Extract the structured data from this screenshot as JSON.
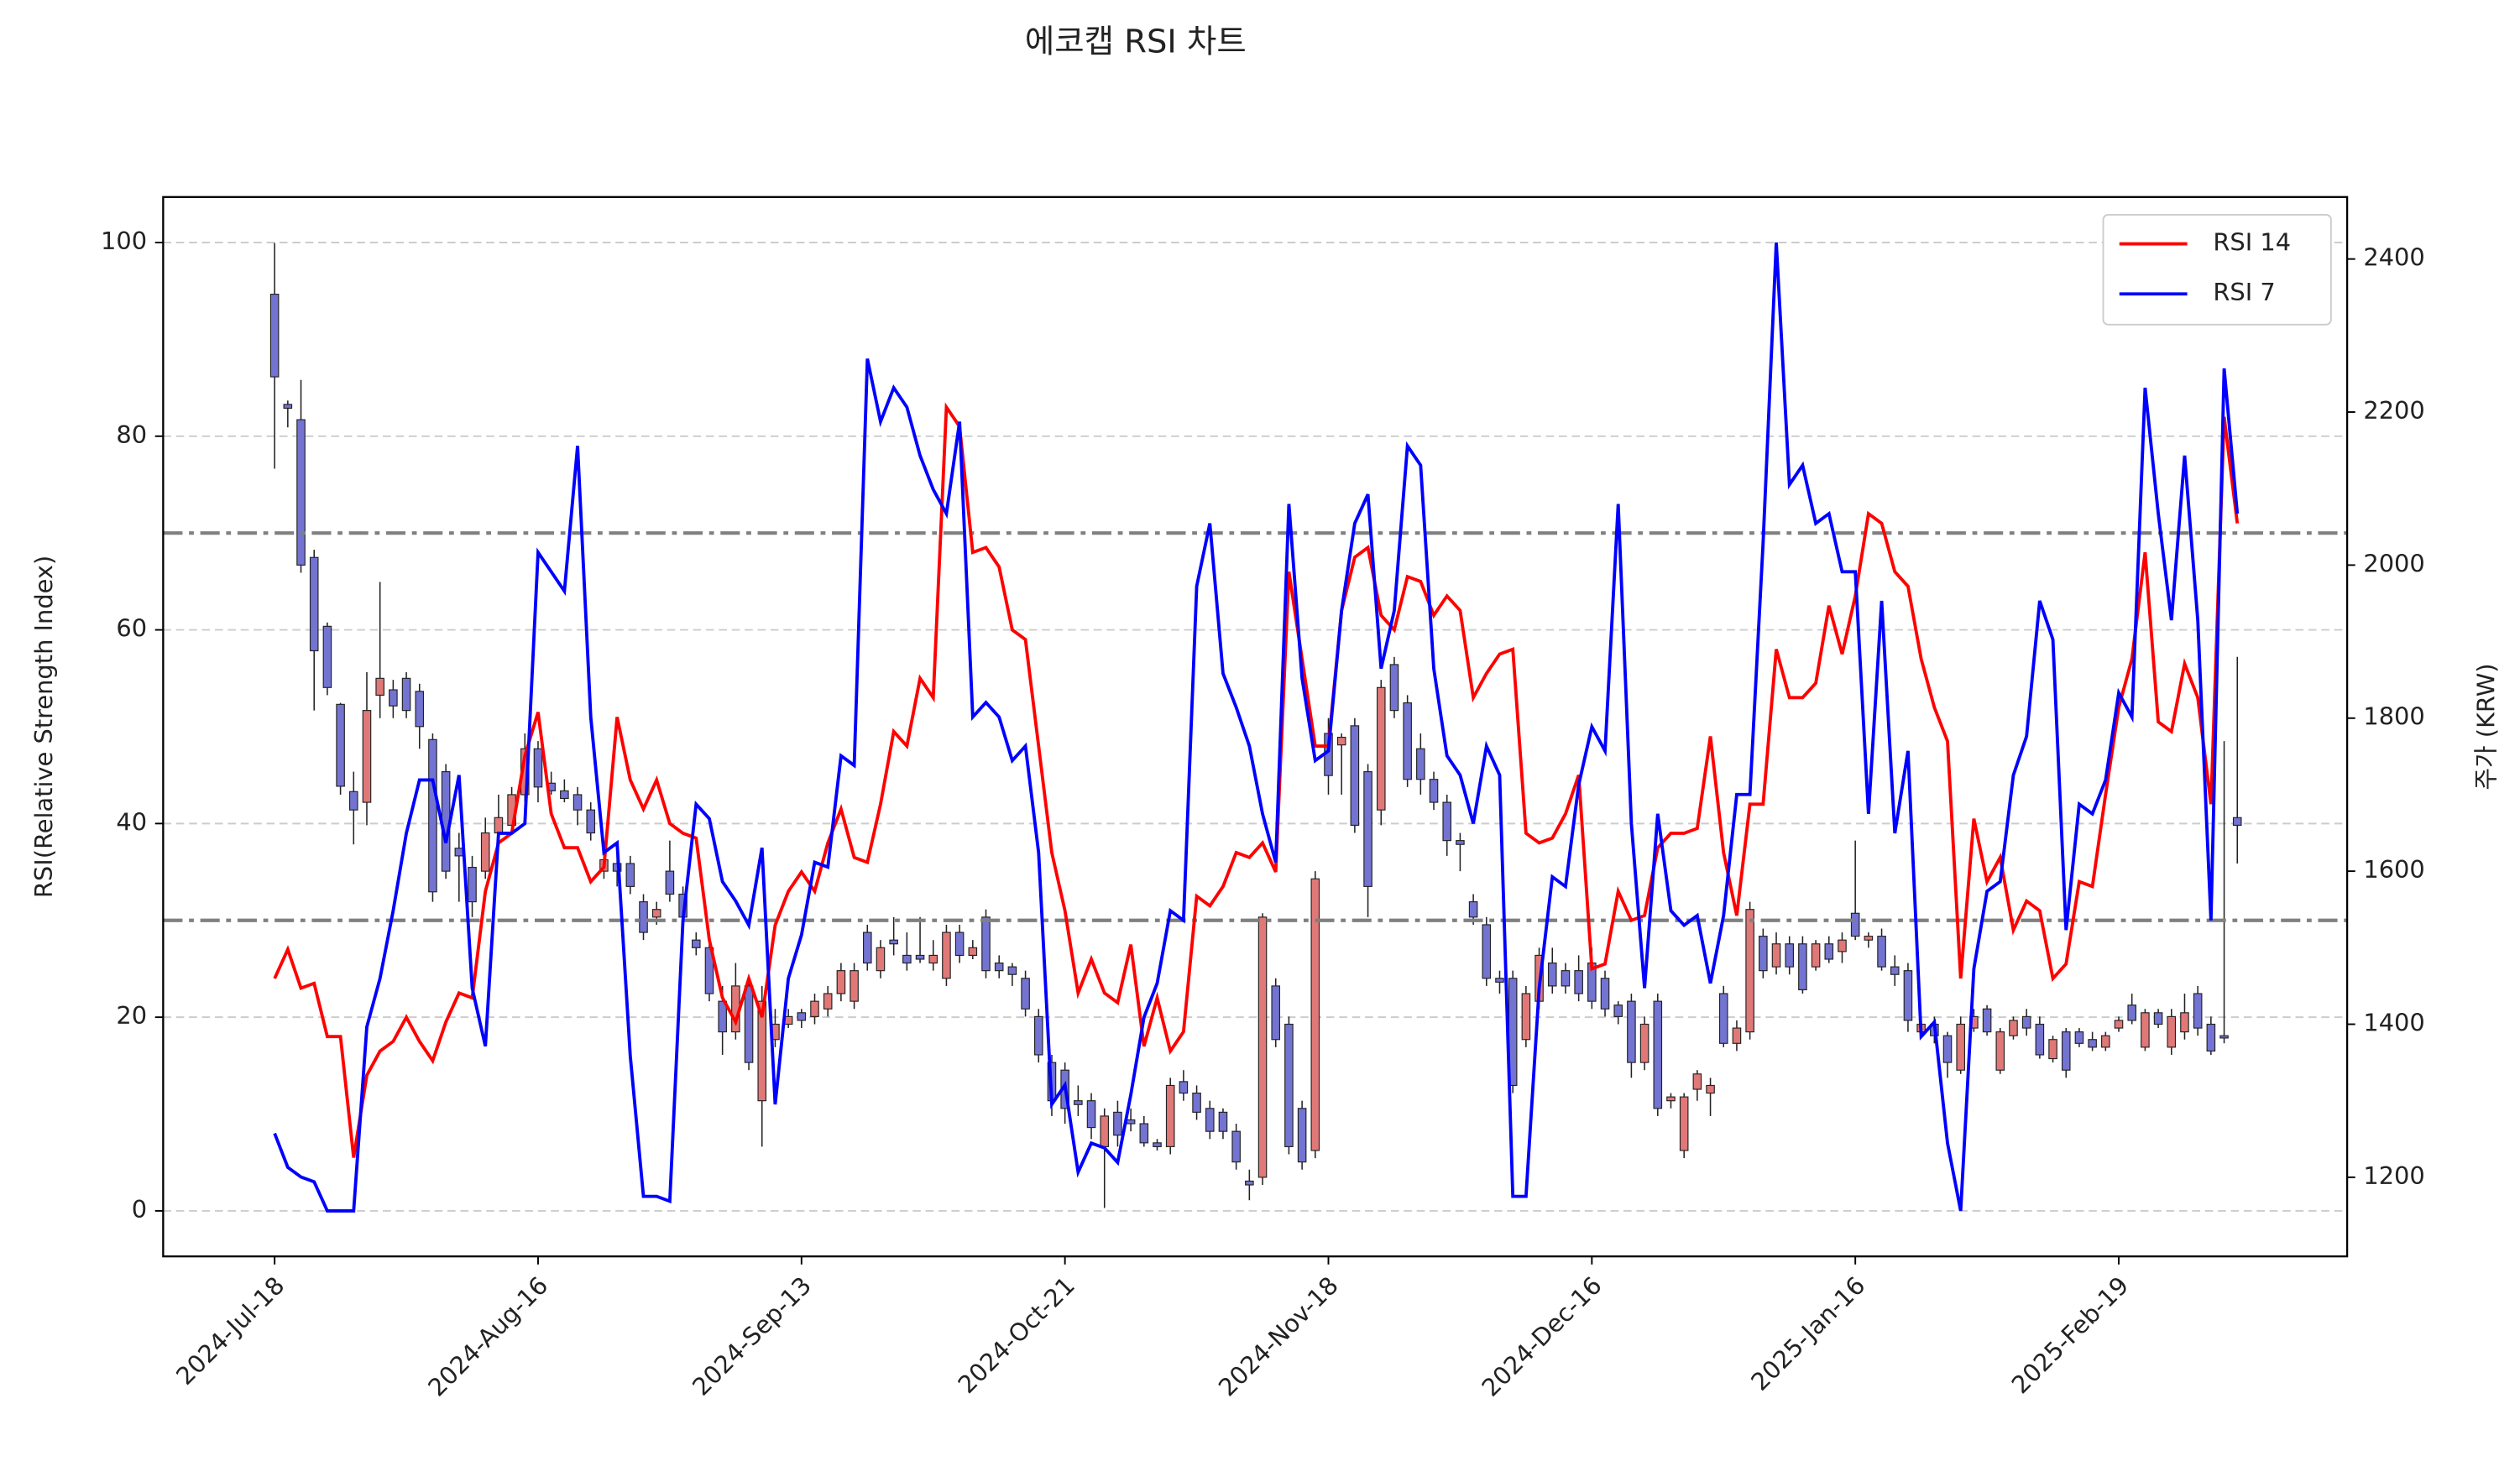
{
  "chart_data": {
    "type": "line",
    "title": "에코캡 RSI 차트",
    "ylabel": "RSI(Relative Strength Index)",
    "y2label": "주가 (KRW)",
    "categories": [
      "2024-Jul-18",
      null,
      null,
      null,
      null,
      null,
      null,
      null,
      null,
      null,
      null,
      null,
      null,
      null,
      null,
      null,
      null,
      null,
      null,
      null,
      "2024-Aug-16",
      null,
      null,
      null,
      null,
      null,
      null,
      null,
      null,
      null,
      null,
      null,
      null,
      null,
      null,
      null,
      null,
      null,
      null,
      null,
      "2024-Sep-13",
      null,
      null,
      null,
      null,
      null,
      null,
      null,
      null,
      null,
      null,
      null,
      null,
      null,
      null,
      null,
      null,
      null,
      null,
      null,
      "2024-Oct-21",
      null,
      null,
      null,
      null,
      null,
      null,
      null,
      null,
      null,
      null,
      null,
      null,
      null,
      null,
      null,
      null,
      null,
      null,
      null,
      "2024-Nov-18",
      null,
      null,
      null,
      null,
      null,
      null,
      null,
      null,
      null,
      null,
      null,
      null,
      null,
      null,
      null,
      null,
      null,
      null,
      null,
      "2024-Dec-16",
      null,
      null,
      null,
      null,
      null,
      null,
      null,
      null,
      null,
      null,
      null,
      null,
      null,
      null,
      null,
      null,
      null,
      null,
      null,
      "2025-Jan-16",
      null,
      null,
      null,
      null,
      null,
      null,
      null,
      null,
      null,
      null,
      null,
      null,
      null,
      null,
      null,
      null,
      null,
      null,
      null,
      "2025-Feb-19",
      null,
      null,
      null,
      null,
      null,
      null,
      null,
      null,
      null
    ],
    "series": [
      {
        "name": "RSI 14",
        "color": "#ff0000",
        "values": [
          24,
          27,
          23,
          23.5,
          18,
          18,
          5.5,
          14,
          16.5,
          17.5,
          20,
          17.5,
          15.5,
          19.5,
          22.5,
          22,
          33,
          38,
          39,
          47,
          51.5,
          41,
          37.5,
          37.5,
          34,
          35.5,
          51,
          44.5,
          41.5,
          44.5,
          40,
          39,
          38.5,
          28,
          22,
          19.5,
          24,
          20,
          29.5,
          33,
          35,
          33,
          38,
          41.5,
          36.5,
          36,
          42,
          49.5,
          48,
          55,
          53,
          83,
          81,
          68,
          68.5,
          66.5,
          60,
          59,
          48,
          37,
          31,
          22.5,
          26,
          22.5,
          21.5,
          27.5,
          17,
          22,
          16.5,
          18.5,
          32.5,
          31.5,
          33.5,
          37,
          36.5,
          38,
          35,
          66,
          57,
          48,
          48,
          62,
          67.5,
          68.5,
          61.5,
          60,
          65.5,
          65,
          61.5,
          63.5,
          62,
          53,
          55.5,
          57.5,
          58,
          39,
          38,
          38.5,
          41,
          45,
          25,
          25.5,
          33,
          30,
          30.5,
          37.5,
          39,
          39,
          39.5,
          49,
          37,
          30.5,
          42,
          42,
          58,
          53,
          53,
          54.5,
          62.5,
          57.5,
          63.5,
          72,
          71,
          66,
          64.5,
          57,
          52,
          48.5,
          24,
          40.5,
          34,
          36.5,
          29,
          32,
          31,
          24,
          25.5,
          34,
          33.5,
          43,
          52,
          57,
          68,
          50.5,
          49.5,
          56.5,
          53,
          42,
          82,
          71
        ]
      },
      {
        "name": "RSI 7",
        "color": "#0000ff",
        "values": [
          8,
          4.5,
          3.5,
          3,
          0,
          0,
          0,
          19,
          24,
          31,
          39,
          44.5,
          44.5,
          38,
          45,
          23,
          17,
          39,
          39,
          40,
          68,
          66,
          64,
          79,
          51,
          37,
          38,
          16,
          1.5,
          1.5,
          1,
          30,
          42,
          40.5,
          34,
          32,
          29.5,
          37.5,
          11,
          24,
          28.5,
          36,
          35.5,
          47,
          46,
          88,
          81.5,
          85,
          83,
          78,
          74.5,
          72,
          81.5,
          51,
          52.5,
          51,
          46.5,
          48,
          37,
          11,
          13,
          4,
          7,
          6.5,
          5,
          12,
          20,
          23.5,
          31,
          30,
          64.5,
          71,
          55.5,
          52,
          48,
          41,
          36,
          73,
          55,
          46.5,
          47.5,
          62,
          71,
          74,
          56,
          62,
          79,
          77,
          56,
          47,
          45,
          40,
          48,
          45,
          1.5,
          1.5,
          23,
          34.5,
          33.5,
          44,
          50,
          47.5,
          73,
          40,
          23,
          41,
          31,
          29.5,
          30.5,
          23.5,
          30.5,
          43,
          43,
          69,
          100,
          75,
          77,
          71,
          72,
          66,
          66,
          41,
          63,
          39,
          47.5,
          18,
          19.5,
          7,
          0,
          25,
          33,
          34,
          45,
          49,
          63,
          59,
          29,
          42,
          41,
          44.5,
          53.5,
          51,
          85,
          72,
          61,
          78,
          61,
          30,
          87,
          72
        ]
      }
    ],
    "candles": {
      "axis": "y2",
      "up_color": "#e07878",
      "down_color": "#7373d2",
      "open": [
        2354,
        2210,
        2190,
        2010,
        1920,
        1818,
        1704,
        1690,
        1830,
        1837,
        1852,
        1835,
        1772,
        1730,
        1630,
        1605,
        1600,
        1650,
        1660,
        1700,
        1760,
        1715,
        1705,
        1700,
        1680,
        1600,
        1610,
        1610,
        1560,
        1540,
        1600,
        1570,
        1510,
        1500,
        1430,
        1390,
        1450,
        1300,
        1380,
        1400,
        1415,
        1410,
        1420,
        1440,
        1430,
        1520,
        1470,
        1510,
        1490,
        1490,
        1480,
        1460,
        1520,
        1490,
        1540,
        1480,
        1475,
        1460,
        1410,
        1350,
        1340,
        1300,
        1300,
        1240,
        1285,
        1275,
        1270,
        1245,
        1240,
        1325,
        1310,
        1290,
        1285,
        1260,
        1195,
        1200,
        1450,
        1400,
        1290,
        1235,
        1780,
        1765,
        1790,
        1730,
        1680,
        1870,
        1820,
        1760,
        1720,
        1690,
        1640,
        1560,
        1530,
        1460,
        1460,
        1380,
        1430,
        1480,
        1470,
        1470,
        1480,
        1460,
        1425,
        1430,
        1350,
        1430,
        1300,
        1235,
        1315,
        1310,
        1440,
        1375,
        1390,
        1515,
        1475,
        1505,
        1505,
        1475,
        1505,
        1495,
        1545,
        1510,
        1515,
        1475,
        1470,
        1390,
        1400,
        1385,
        1340,
        1395,
        1420,
        1340,
        1385,
        1410,
        1400,
        1355,
        1390,
        1390,
        1380,
        1370,
        1395,
        1425,
        1370,
        1415,
        1370,
        1390,
        1440,
        1400,
        1385,
        1670
      ],
      "high": [
        2421,
        2215,
        2242,
        2020,
        1925,
        1820,
        1730,
        1860,
        1978,
        1850,
        1860,
        1845,
        1780,
        1740,
        1650,
        1620,
        1670,
        1700,
        1710,
        1780,
        1770,
        1730,
        1720,
        1710,
        1690,
        1625,
        1620,
        1620,
        1570,
        1560,
        1640,
        1580,
        1520,
        1510,
        1450,
        1480,
        1460,
        1450,
        1420,
        1420,
        1420,
        1440,
        1450,
        1480,
        1480,
        1530,
        1510,
        1540,
        1520,
        1540,
        1510,
        1530,
        1530,
        1510,
        1550,
        1490,
        1480,
        1470,
        1420,
        1360,
        1350,
        1320,
        1310,
        1290,
        1300,
        1290,
        1280,
        1250,
        1330,
        1340,
        1320,
        1300,
        1290,
        1270,
        1210,
        1545,
        1460,
        1410,
        1300,
        1600,
        1800,
        1780,
        1800,
        1740,
        1850,
        1880,
        1830,
        1780,
        1730,
        1700,
        1650,
        1570,
        1540,
        1470,
        1470,
        1450,
        1500,
        1500,
        1480,
        1490,
        1500,
        1470,
        1430,
        1440,
        1410,
        1440,
        1310,
        1310,
        1340,
        1330,
        1450,
        1405,
        1560,
        1525,
        1520,
        1515,
        1515,
        1510,
        1515,
        1520,
        1640,
        1520,
        1525,
        1490,
        1480,
        1410,
        1410,
        1390,
        1410,
        1420,
        1425,
        1395,
        1410,
        1420,
        1410,
        1385,
        1395,
        1395,
        1390,
        1390,
        1410,
        1440,
        1420,
        1420,
        1420,
        1440,
        1450,
        1410,
        1770,
        1880
      ],
      "low": [
        2126,
        2180,
        1990,
        1810,
        1830,
        1700,
        1635,
        1660,
        1800,
        1800,
        1800,
        1760,
        1560,
        1590,
        1560,
        1540,
        1590,
        1640,
        1650,
        1690,
        1690,
        1700,
        1690,
        1660,
        1640,
        1590,
        1580,
        1570,
        1510,
        1530,
        1560,
        1530,
        1490,
        1430,
        1360,
        1380,
        1340,
        1240,
        1370,
        1395,
        1395,
        1400,
        1410,
        1430,
        1420,
        1470,
        1460,
        1490,
        1470,
        1480,
        1470,
        1450,
        1480,
        1485,
        1460,
        1460,
        1450,
        1410,
        1350,
        1280,
        1270,
        1280,
        1250,
        1160,
        1240,
        1260,
        1240,
        1235,
        1230,
        1300,
        1275,
        1250,
        1250,
        1210,
        1170,
        1190,
        1370,
        1230,
        1210,
        1225,
        1700,
        1700,
        1650,
        1540,
        1660,
        1800,
        1710,
        1700,
        1680,
        1620,
        1600,
        1530,
        1450,
        1440,
        1310,
        1370,
        1420,
        1440,
        1440,
        1430,
        1420,
        1410,
        1400,
        1330,
        1340,
        1280,
        1290,
        1225,
        1300,
        1280,
        1370,
        1365,
        1380,
        1460,
        1465,
        1465,
        1440,
        1470,
        1480,
        1480,
        1510,
        1500,
        1470,
        1450,
        1390,
        1385,
        1375,
        1330,
        1335,
        1390,
        1385,
        1335,
        1380,
        1385,
        1355,
        1350,
        1330,
        1370,
        1365,
        1365,
        1390,
        1400,
        1365,
        1395,
        1360,
        1380,
        1385,
        1360,
        1375,
        1610
      ],
      "close": [
        2246,
        2205,
        2000,
        1888,
        1840,
        1711,
        1680,
        1810,
        1852,
        1816,
        1810,
        1789,
        1573,
        1600,
        1620,
        1560,
        1650,
        1670,
        1700,
        1760,
        1710,
        1705,
        1695,
        1680,
        1650,
        1615,
        1600,
        1580,
        1520,
        1550,
        1570,
        1540,
        1500,
        1440,
        1390,
        1450,
        1350,
        1430,
        1400,
        1410,
        1405,
        1430,
        1440,
        1470,
        1470,
        1480,
        1500,
        1505,
        1480,
        1485,
        1490,
        1520,
        1490,
        1500,
        1470,
        1470,
        1465,
        1420,
        1360,
        1300,
        1290,
        1295,
        1265,
        1280,
        1255,
        1270,
        1245,
        1240,
        1320,
        1310,
        1285,
        1260,
        1260,
        1220,
        1190,
        1540,
        1380,
        1240,
        1220,
        1590,
        1725,
        1775,
        1660,
        1580,
        1840,
        1810,
        1720,
        1720,
        1690,
        1640,
        1635,
        1540,
        1460,
        1455,
        1320,
        1440,
        1490,
        1450,
        1450,
        1440,
        1430,
        1420,
        1410,
        1350,
        1400,
        1290,
        1305,
        1305,
        1335,
        1320,
        1375,
        1395,
        1550,
        1470,
        1505,
        1475,
        1445,
        1505,
        1485,
        1510,
        1515,
        1515,
        1475,
        1465,
        1405,
        1400,
        1385,
        1350,
        1400,
        1410,
        1390,
        1390,
        1405,
        1395,
        1360,
        1380,
        1340,
        1375,
        1370,
        1385,
        1405,
        1405,
        1415,
        1400,
        1410,
        1415,
        1395,
        1365,
        1382,
        1660
      ]
    },
    "hlines": [
      70,
      30
    ],
    "hline_color": "#808080",
    "ylim": [
      -4.7,
      104.7
    ],
    "yticks": [
      0,
      20,
      40,
      60,
      80,
      100
    ],
    "y2lim": [
      1096.6,
      2481
    ],
    "y2ticks": [
      1200,
      1400,
      1600,
      1800,
      2000,
      2200,
      2400
    ],
    "grid": true,
    "legend": "upper right"
  }
}
